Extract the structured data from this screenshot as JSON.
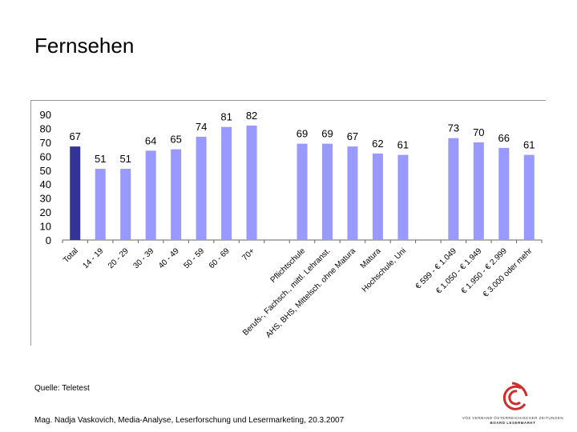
{
  "title": "Fernsehen",
  "source": "Quelle: Teletest",
  "footer": "Mag. Nadja Vaskovich, Media-Analyse, Leserforschung und Lesermarketing, 20.3.2007",
  "logo": {
    "line1": "VÖZ VERBAND ÖSTERREICHISCHER ZEITUNGEN",
    "line2": "BOARD LESERMARKT"
  },
  "colors": {
    "total": "#333399",
    "bars": "#9999ff"
  },
  "chart_data": {
    "type": "bar",
    "ylim": [
      0,
      90
    ],
    "yticks": [
      0,
      10,
      20,
      30,
      40,
      50,
      60,
      70,
      80,
      90
    ],
    "grid": false,
    "categories": [
      "Total",
      "14 - 19",
      "20 - 29",
      "30 - 39",
      "40 - 49",
      "50 - 59",
      "60 - 69",
      "70+",
      "",
      "Pflichtschule",
      "Berufs-, Fachsch., mittl. Lehranst.",
      "AHS, BHS, Mittelsch. ohne Matura",
      "Matura",
      "Hochschule, Uni",
      "",
      "€ 599 - € 1.049",
      "€ 1.050 - € 1.949",
      "€ 1.950 - € 2.999",
      "€ 3.000 oder mehr"
    ],
    "values": [
      67,
      51,
      51,
      64,
      65,
      74,
      81,
      82,
      null,
      69,
      69,
      67,
      62,
      61,
      null,
      73,
      70,
      66,
      61
    ]
  }
}
